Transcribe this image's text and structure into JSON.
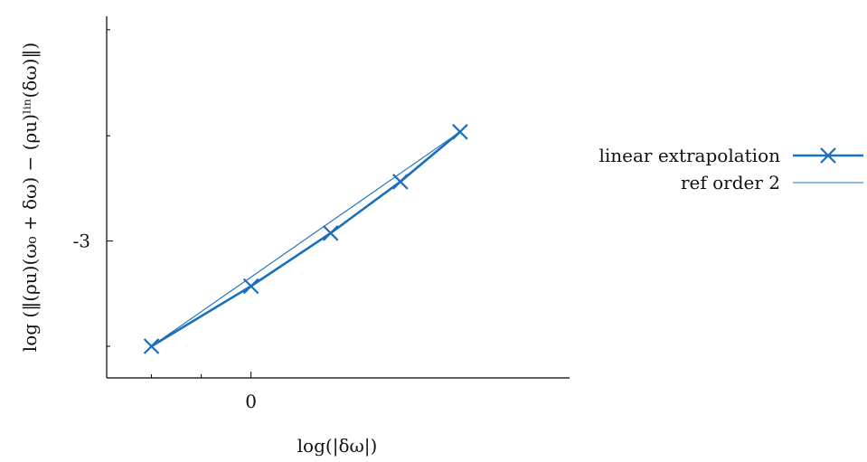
{
  "chart_data": {
    "type": "line",
    "title": "",
    "xlabel": "log(|δω|)",
    "ylabel": "log (‖(ρu)(ω₀ + δω) − (ρu)ˡⁱⁿ(δω)‖)",
    "xlim": [
      -1.45,
      3.2
    ],
    "ylim": [
      -4.73,
      -0.16
    ],
    "xticks": [
      {
        "value": 0,
        "label": "0"
      }
    ],
    "xminor_ticks": [
      -1,
      -0.5
    ],
    "yticks": [
      {
        "value": -3,
        "label": "-3"
      }
    ],
    "yminor_ticks": [
      -4.33,
      -1.67,
      -0.33
    ],
    "grid": false,
    "legend": "right",
    "series": [
      {
        "name": "linear extrapolation",
        "color": "#1a6fbd",
        "marker": "x",
        "x": [
          -1,
          0,
          0.8,
          1.5,
          2.1
        ],
        "y": [
          -4.33,
          -3.57,
          -2.9,
          -2.25,
          -1.62
        ]
      },
      {
        "name": "ref order 2",
        "color": "#1a6fbd",
        "marker": "none",
        "x": [
          -1,
          2.1
        ],
        "y": [
          -4.33,
          -1.62
        ]
      }
    ]
  }
}
